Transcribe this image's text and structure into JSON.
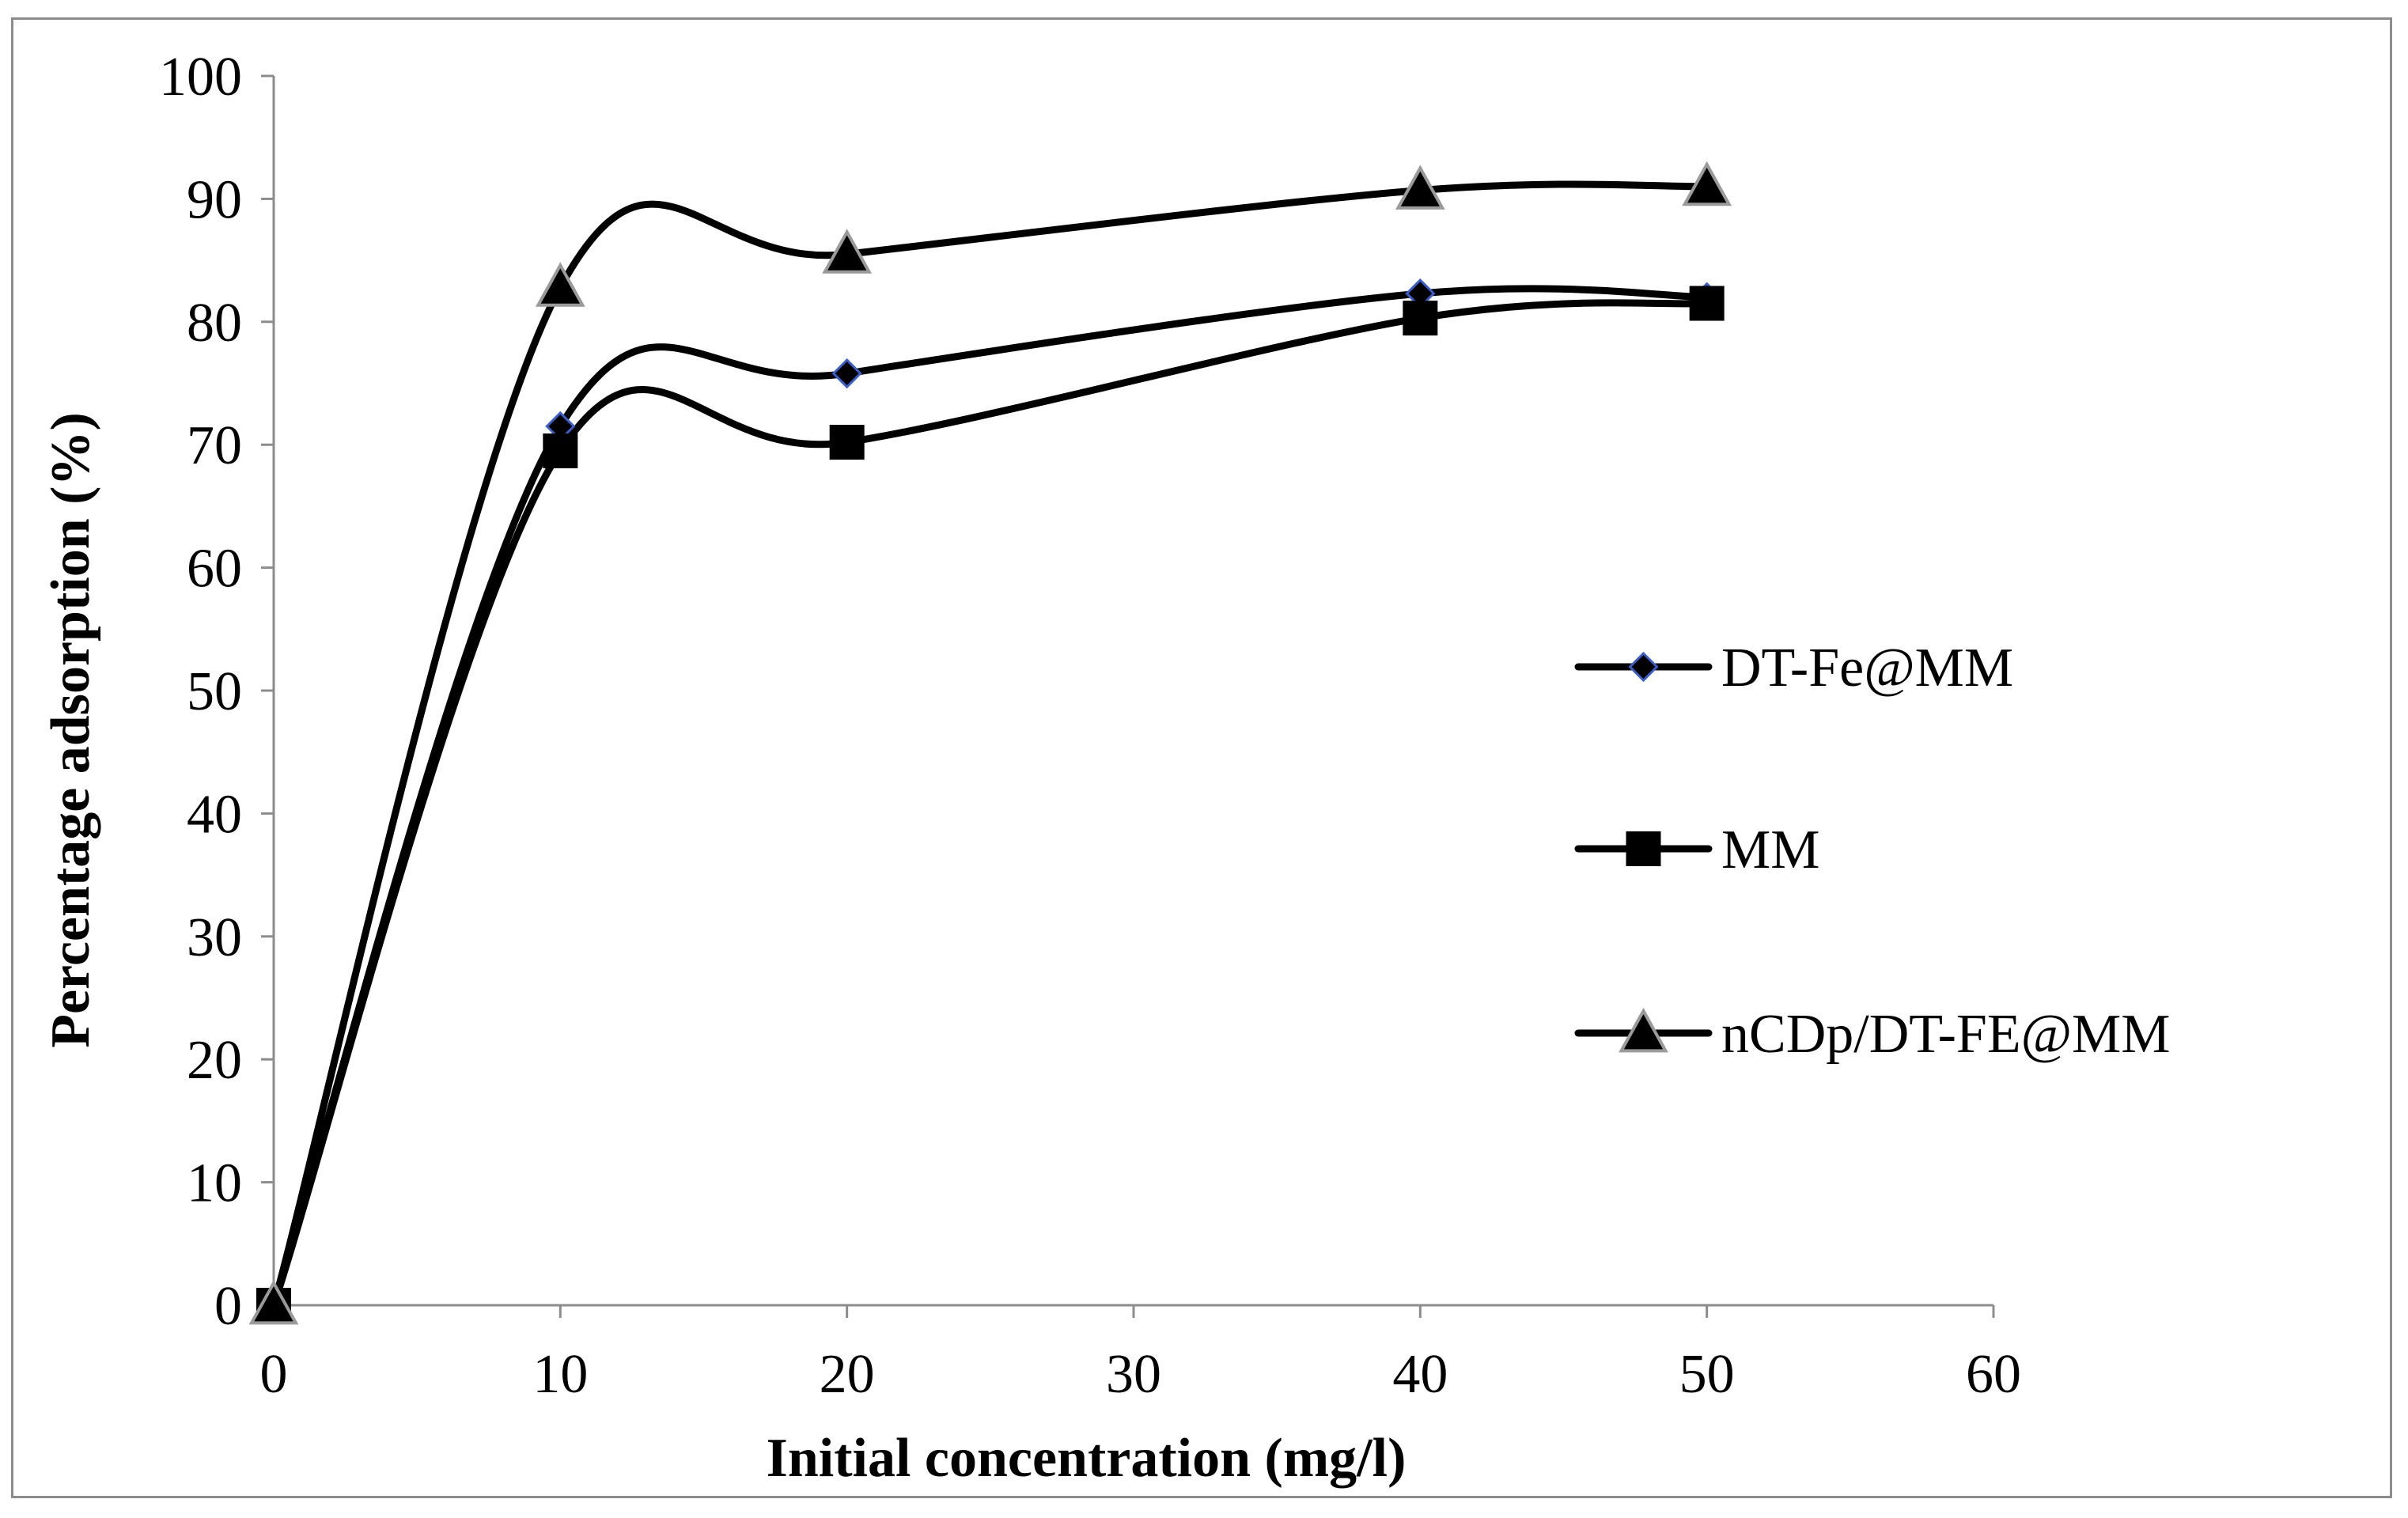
{
  "chart_data": {
    "type": "line",
    "smooth": true,
    "xlabel": "Initial concentration (mg/l)",
    "ylabel": "Percentage adsorption (%)",
    "xlim": [
      0,
      60
    ],
    "ylim": [
      0,
      100
    ],
    "xticks": [
      0,
      10,
      20,
      30,
      40,
      50,
      60
    ],
    "yticks": [
      0,
      10,
      20,
      30,
      40,
      50,
      60,
      70,
      80,
      90,
      100
    ],
    "grid": false,
    "legend_position": "right",
    "series": [
      {
        "name": "DT-Fe@MM",
        "marker": "diamond",
        "x": [
          0,
          10,
          20,
          40,
          50
        ],
        "y": [
          0,
          71.5,
          75.8,
          82.3,
          82.0
        ]
      },
      {
        "name": "MM",
        "marker": "square",
        "x": [
          0,
          10,
          20,
          40,
          50
        ],
        "y": [
          0,
          69.5,
          70.2,
          80.3,
          81.5
        ]
      },
      {
        "name": "nCDp/DT-FE@MM",
        "marker": "triangle",
        "x": [
          0,
          10,
          20,
          40,
          50
        ],
        "y": [
          0,
          82.8,
          85.5,
          90.7,
          91.0
        ]
      }
    ]
  },
  "colors": {
    "line": "#000000",
    "axis": "#8c8c8c",
    "diamond_edge": "#3a5fcd",
    "triangle_edge": "#9a9a9a"
  }
}
